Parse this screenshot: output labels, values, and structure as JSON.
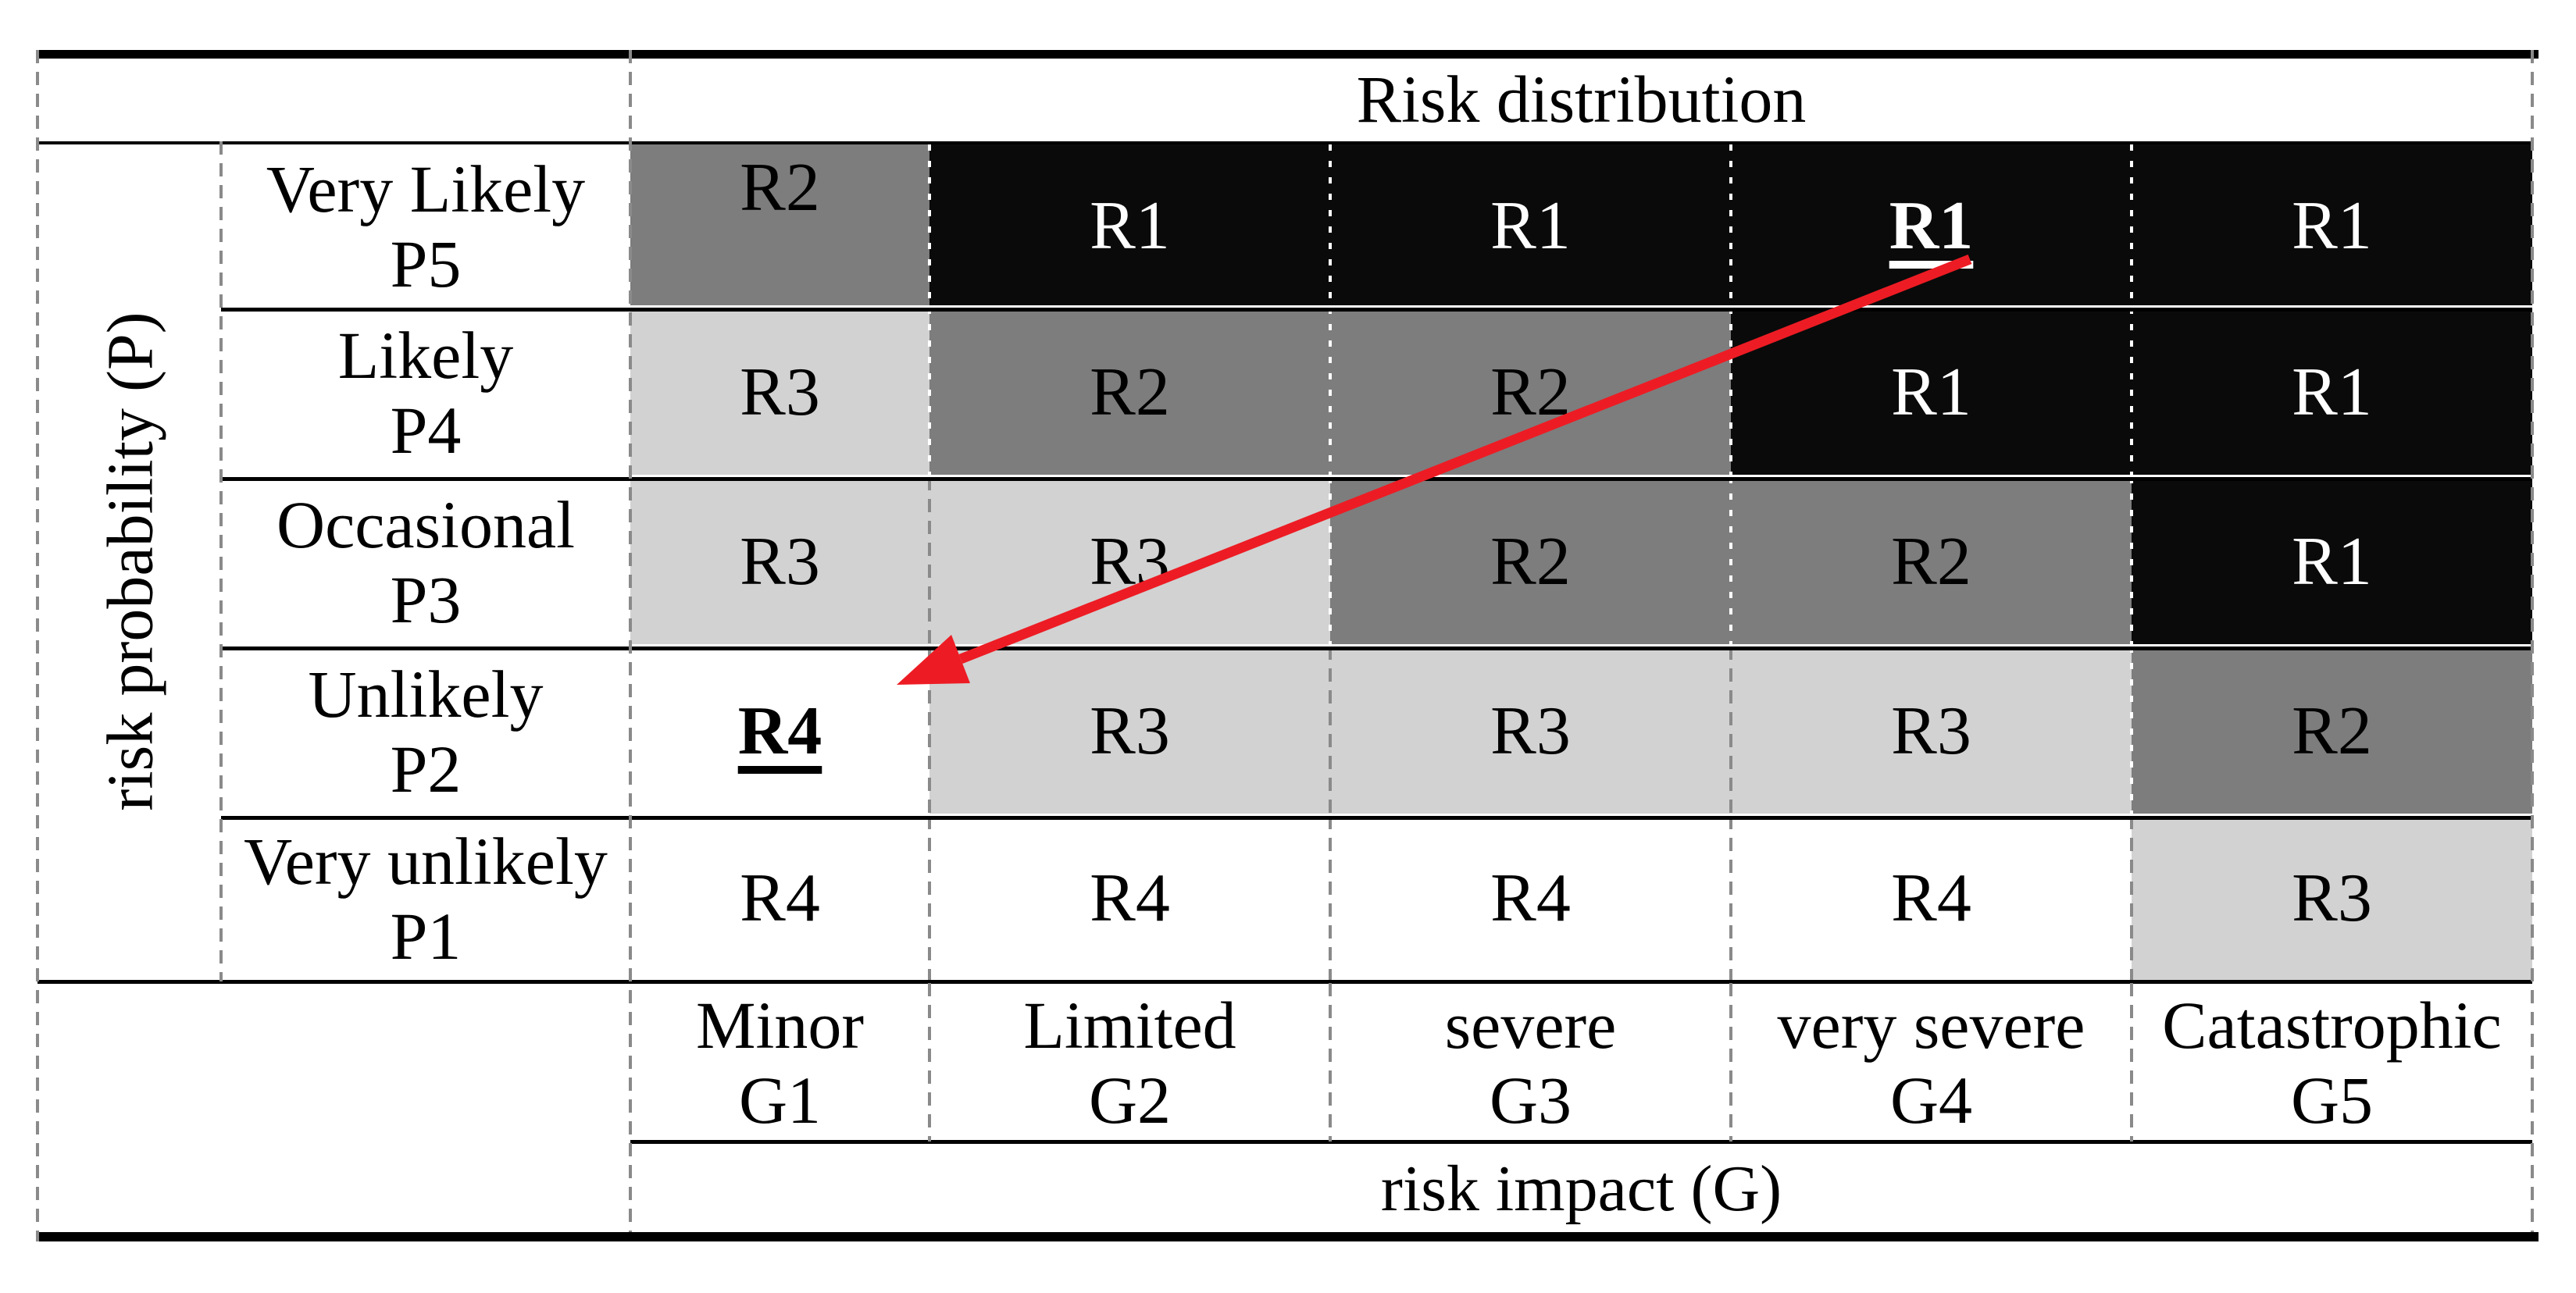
{
  "figure": {
    "title": "Risk distribution",
    "x_axis_title": "risk impact (G)",
    "y_axis_title": "risk probability (P)"
  },
  "palette": {
    "level_r1": "#0a0a0a",
    "level_r2": "#7d7d7d",
    "level_r3": "#d2d2d2",
    "level_r4": "#ffffff",
    "grid_line": "#000000",
    "dash_gray": "#8a8a8a",
    "dash_on_dark": "#ffffff",
    "arrow_red": "#ed1c24",
    "text_on_dark": "#ffffff",
    "text": "#000000"
  },
  "probability_rows": [
    {
      "label": "Very Likely",
      "code": "P5",
      "cells": [
        {
          "value": "R2",
          "shade": "dark",
          "align": "top"
        },
        {
          "value": "R1",
          "shade": "black"
        },
        {
          "value": "R1",
          "shade": "black"
        },
        {
          "value": "R1",
          "shade": "black",
          "emphasis": true
        },
        {
          "value": "R1",
          "shade": "black"
        }
      ]
    },
    {
      "label": "Likely",
      "code": "P4",
      "cells": [
        {
          "value": "R3",
          "shade": "light"
        },
        {
          "value": "R2",
          "shade": "dark"
        },
        {
          "value": "R2",
          "shade": "dark"
        },
        {
          "value": "R1",
          "shade": "black"
        },
        {
          "value": "R1",
          "shade": "black"
        }
      ]
    },
    {
      "label": "Occasional",
      "code": "P3",
      "cells": [
        {
          "value": "R3",
          "shade": "light"
        },
        {
          "value": "R3",
          "shade": "light"
        },
        {
          "value": "R2",
          "shade": "dark"
        },
        {
          "value": "R2",
          "shade": "dark"
        },
        {
          "value": "R1",
          "shade": "black"
        }
      ]
    },
    {
      "label": "Unlikely",
      "code": "P2",
      "cells": [
        {
          "value": "R4",
          "shade": "white",
          "emphasis": true
        },
        {
          "value": "R3",
          "shade": "light"
        },
        {
          "value": "R3",
          "shade": "light"
        },
        {
          "value": "R3",
          "shade": "light"
        },
        {
          "value": "R2",
          "shade": "dark"
        }
      ]
    },
    {
      "label": "Very unlikely",
      "code": "P1",
      "cells": [
        {
          "value": "R4",
          "shade": "white"
        },
        {
          "value": "R4",
          "shade": "white"
        },
        {
          "value": "R4",
          "shade": "white"
        },
        {
          "value": "R4",
          "shade": "white"
        },
        {
          "value": "R3",
          "shade": "light"
        }
      ]
    }
  ],
  "impact_columns": [
    {
      "label": "Minor",
      "code": "G1"
    },
    {
      "label": "Limited",
      "code": "G2"
    },
    {
      "label": "severe",
      "code": "G3"
    },
    {
      "label": "very severe",
      "code": "G4"
    },
    {
      "label": "Catastrophic",
      "code": "G5"
    }
  ],
  "arrow": {
    "color": "#ed1c24",
    "from_cell": "P5-G4",
    "to_cell": "P2-G1"
  },
  "chart_data": {
    "type": "heatmap",
    "title": "Risk distribution",
    "xlabel": "risk impact (G)",
    "ylabel": "risk probability (P)",
    "x_categories": [
      "Minor G1",
      "Limited G2",
      "severe G3",
      "very severe G4",
      "Catastrophic G5"
    ],
    "y_categories": [
      "Very Likely P5",
      "Likely P4",
      "Occasional P3",
      "Unlikely P2",
      "Very unlikely P1"
    ],
    "values": [
      [
        "R2",
        "R1",
        "R1",
        "R1",
        "R1"
      ],
      [
        "R3",
        "R2",
        "R2",
        "R1",
        "R1"
      ],
      [
        "R3",
        "R3",
        "R2",
        "R2",
        "R1"
      ],
      [
        "R4",
        "R3",
        "R3",
        "R3",
        "R2"
      ],
      [
        "R4",
        "R4",
        "R4",
        "R4",
        "R3"
      ]
    ],
    "highlighted_cells": [
      "P5/G4 = R1",
      "P2/G1 = R4"
    ],
    "annotation": "red arrow from R1 (P5, very severe G4) to R4 (P2, Minor G1)"
  }
}
